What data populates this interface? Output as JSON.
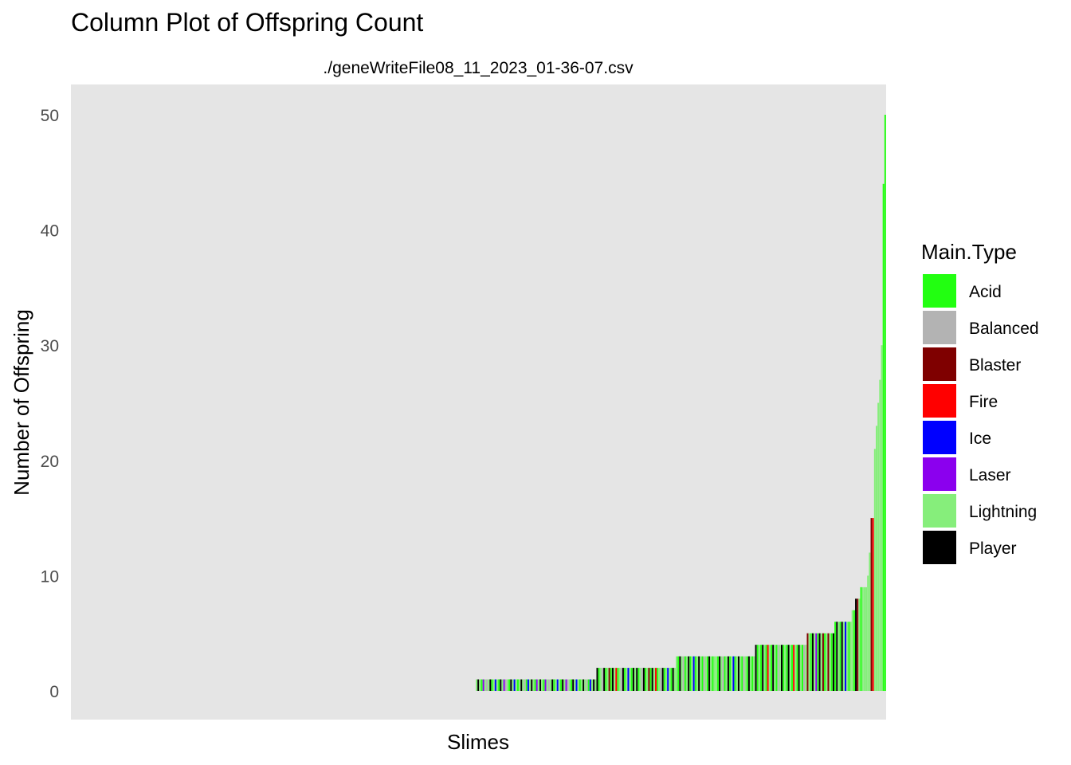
{
  "chart_data": {
    "type": "bar",
    "title": "Column Plot of Offspring Count",
    "subtitle": "./geneWriteFile08_11_2023_01-36-07.csv",
    "xlabel": "Slimes",
    "ylabel": "Number of Offspring",
    "ylim": [
      0,
      52
    ],
    "yticks": [
      0,
      10,
      20,
      30,
      40,
      50
    ],
    "grid": false,
    "panel_background": "#e5e5e5",
    "x_order": "ascending by value",
    "legend": {
      "title": "Main.Type",
      "position": "right",
      "entries": [
        {
          "name": "Acid",
          "color": "#22ff11"
        },
        {
          "name": "Balanced",
          "color": "#b3b3b3"
        },
        {
          "name": "Blaster",
          "color": "#7f0000"
        },
        {
          "name": "Fire",
          "color": "#ff0000"
        },
        {
          "name": "Ice",
          "color": "#0000ff"
        },
        {
          "name": "Laser",
          "color": "#8b00ee"
        },
        {
          "name": "Lightning",
          "color": "#86ee7b"
        },
        {
          "name": "Player",
          "color": "#000000"
        }
      ]
    },
    "series": [
      {
        "value": 1,
        "count": 70,
        "pattern": [
          "Lightning",
          "Player",
          "Lightning",
          "Acid",
          "Laser",
          "Lightning",
          "Balanced",
          "Lightning",
          "Player",
          "Acid",
          "Lightning",
          "Ice",
          "Lightning",
          "Acid",
          "Player",
          "Lightning",
          "Laser",
          "Balanced",
          "Lightning",
          "Acid",
          "Player",
          "Lightning",
          "Ice",
          "Lightning",
          "Acid",
          "Lightning",
          "Player",
          "Lightning",
          "Balanced",
          "Acid",
          "Ice",
          "Lightning",
          "Player",
          "Lightning",
          "Acid",
          "Laser"
        ]
      },
      {
        "value": 2,
        "count": 46,
        "pattern": [
          "Player",
          "Acid",
          "Lightning",
          "Balanced",
          "Player",
          "Acid",
          "Lightning",
          "Blaster",
          "Acid",
          "Player",
          "Lightning",
          "Fire",
          "Acid",
          "Lightning",
          "Balanced",
          "Player",
          "Acid",
          "Lightning",
          "Ice",
          "Lightning",
          "Acid",
          "Player",
          "Lightning"
        ]
      },
      {
        "value": 3,
        "count": 46,
        "pattern": [
          "Lightning",
          "Acid",
          "Player",
          "Lightning",
          "Balanced",
          "Acid",
          "Lightning",
          "Player",
          "Acid",
          "Lightning",
          "Ice",
          "Acid",
          "Lightning",
          "Player",
          "Lightning",
          "Acid",
          "Balanced",
          "Lightning",
          "Acid",
          "Player",
          "Lightning",
          "Acid",
          "Lightning"
        ]
      },
      {
        "value": 4,
        "count": 30,
        "pattern": [
          "Player",
          "Acid",
          "Lightning",
          "Acid",
          "Player",
          "Lightning",
          "Acid",
          "Fire",
          "Lightning",
          "Acid",
          "Player",
          "Lightning",
          "Acid",
          "Balanced",
          "Lightning"
        ]
      },
      {
        "value": 5,
        "count": 16,
        "pattern": [
          "Blaster",
          "Lightning",
          "Acid",
          "Player",
          "Lightning",
          "Laser",
          "Acid",
          "Player",
          "Lightning",
          "Blaster",
          "Acid",
          "Lightning"
        ]
      },
      {
        "value": 6,
        "count": 10,
        "pattern": [
          "Acid",
          "Player",
          "Lightning",
          "Acid",
          "Player",
          "Lightning",
          "Ice",
          "Lightning",
          "Acid",
          "Lightning"
        ]
      },
      {
        "value": 7,
        "count": 2,
        "pattern": [
          "Lightning",
          "Acid"
        ]
      },
      {
        "value": 8,
        "count": 3,
        "pattern": [
          "Player",
          "Blaster",
          "Lightning"
        ]
      },
      {
        "value": 9,
        "count": 4,
        "pattern": [
          "Acid",
          "Lightning",
          "Lightning",
          "Lightning"
        ]
      },
      {
        "value": 10,
        "count": 1,
        "pattern": [
          "Lightning"
        ]
      },
      {
        "value": 12,
        "count": 1,
        "pattern": [
          "Lightning"
        ]
      },
      {
        "value": 15,
        "count": 2,
        "pattern": [
          "Blaster",
          "Fire"
        ]
      },
      {
        "value": 21,
        "count": 1,
        "pattern": [
          "Lightning"
        ]
      },
      {
        "value": 23,
        "count": 1,
        "pattern": [
          "Lightning"
        ]
      },
      {
        "value": 25,
        "count": 1,
        "pattern": [
          "Lightning"
        ]
      },
      {
        "value": 27,
        "count": 1,
        "pattern": [
          "Lightning"
        ]
      },
      {
        "value": 30,
        "count": 1,
        "pattern": [
          "Lightning"
        ]
      },
      {
        "value": 44,
        "count": 1,
        "pattern": [
          "Acid"
        ]
      },
      {
        "value": 50,
        "count": 1,
        "pattern": [
          "Acid"
        ]
      }
    ]
  }
}
